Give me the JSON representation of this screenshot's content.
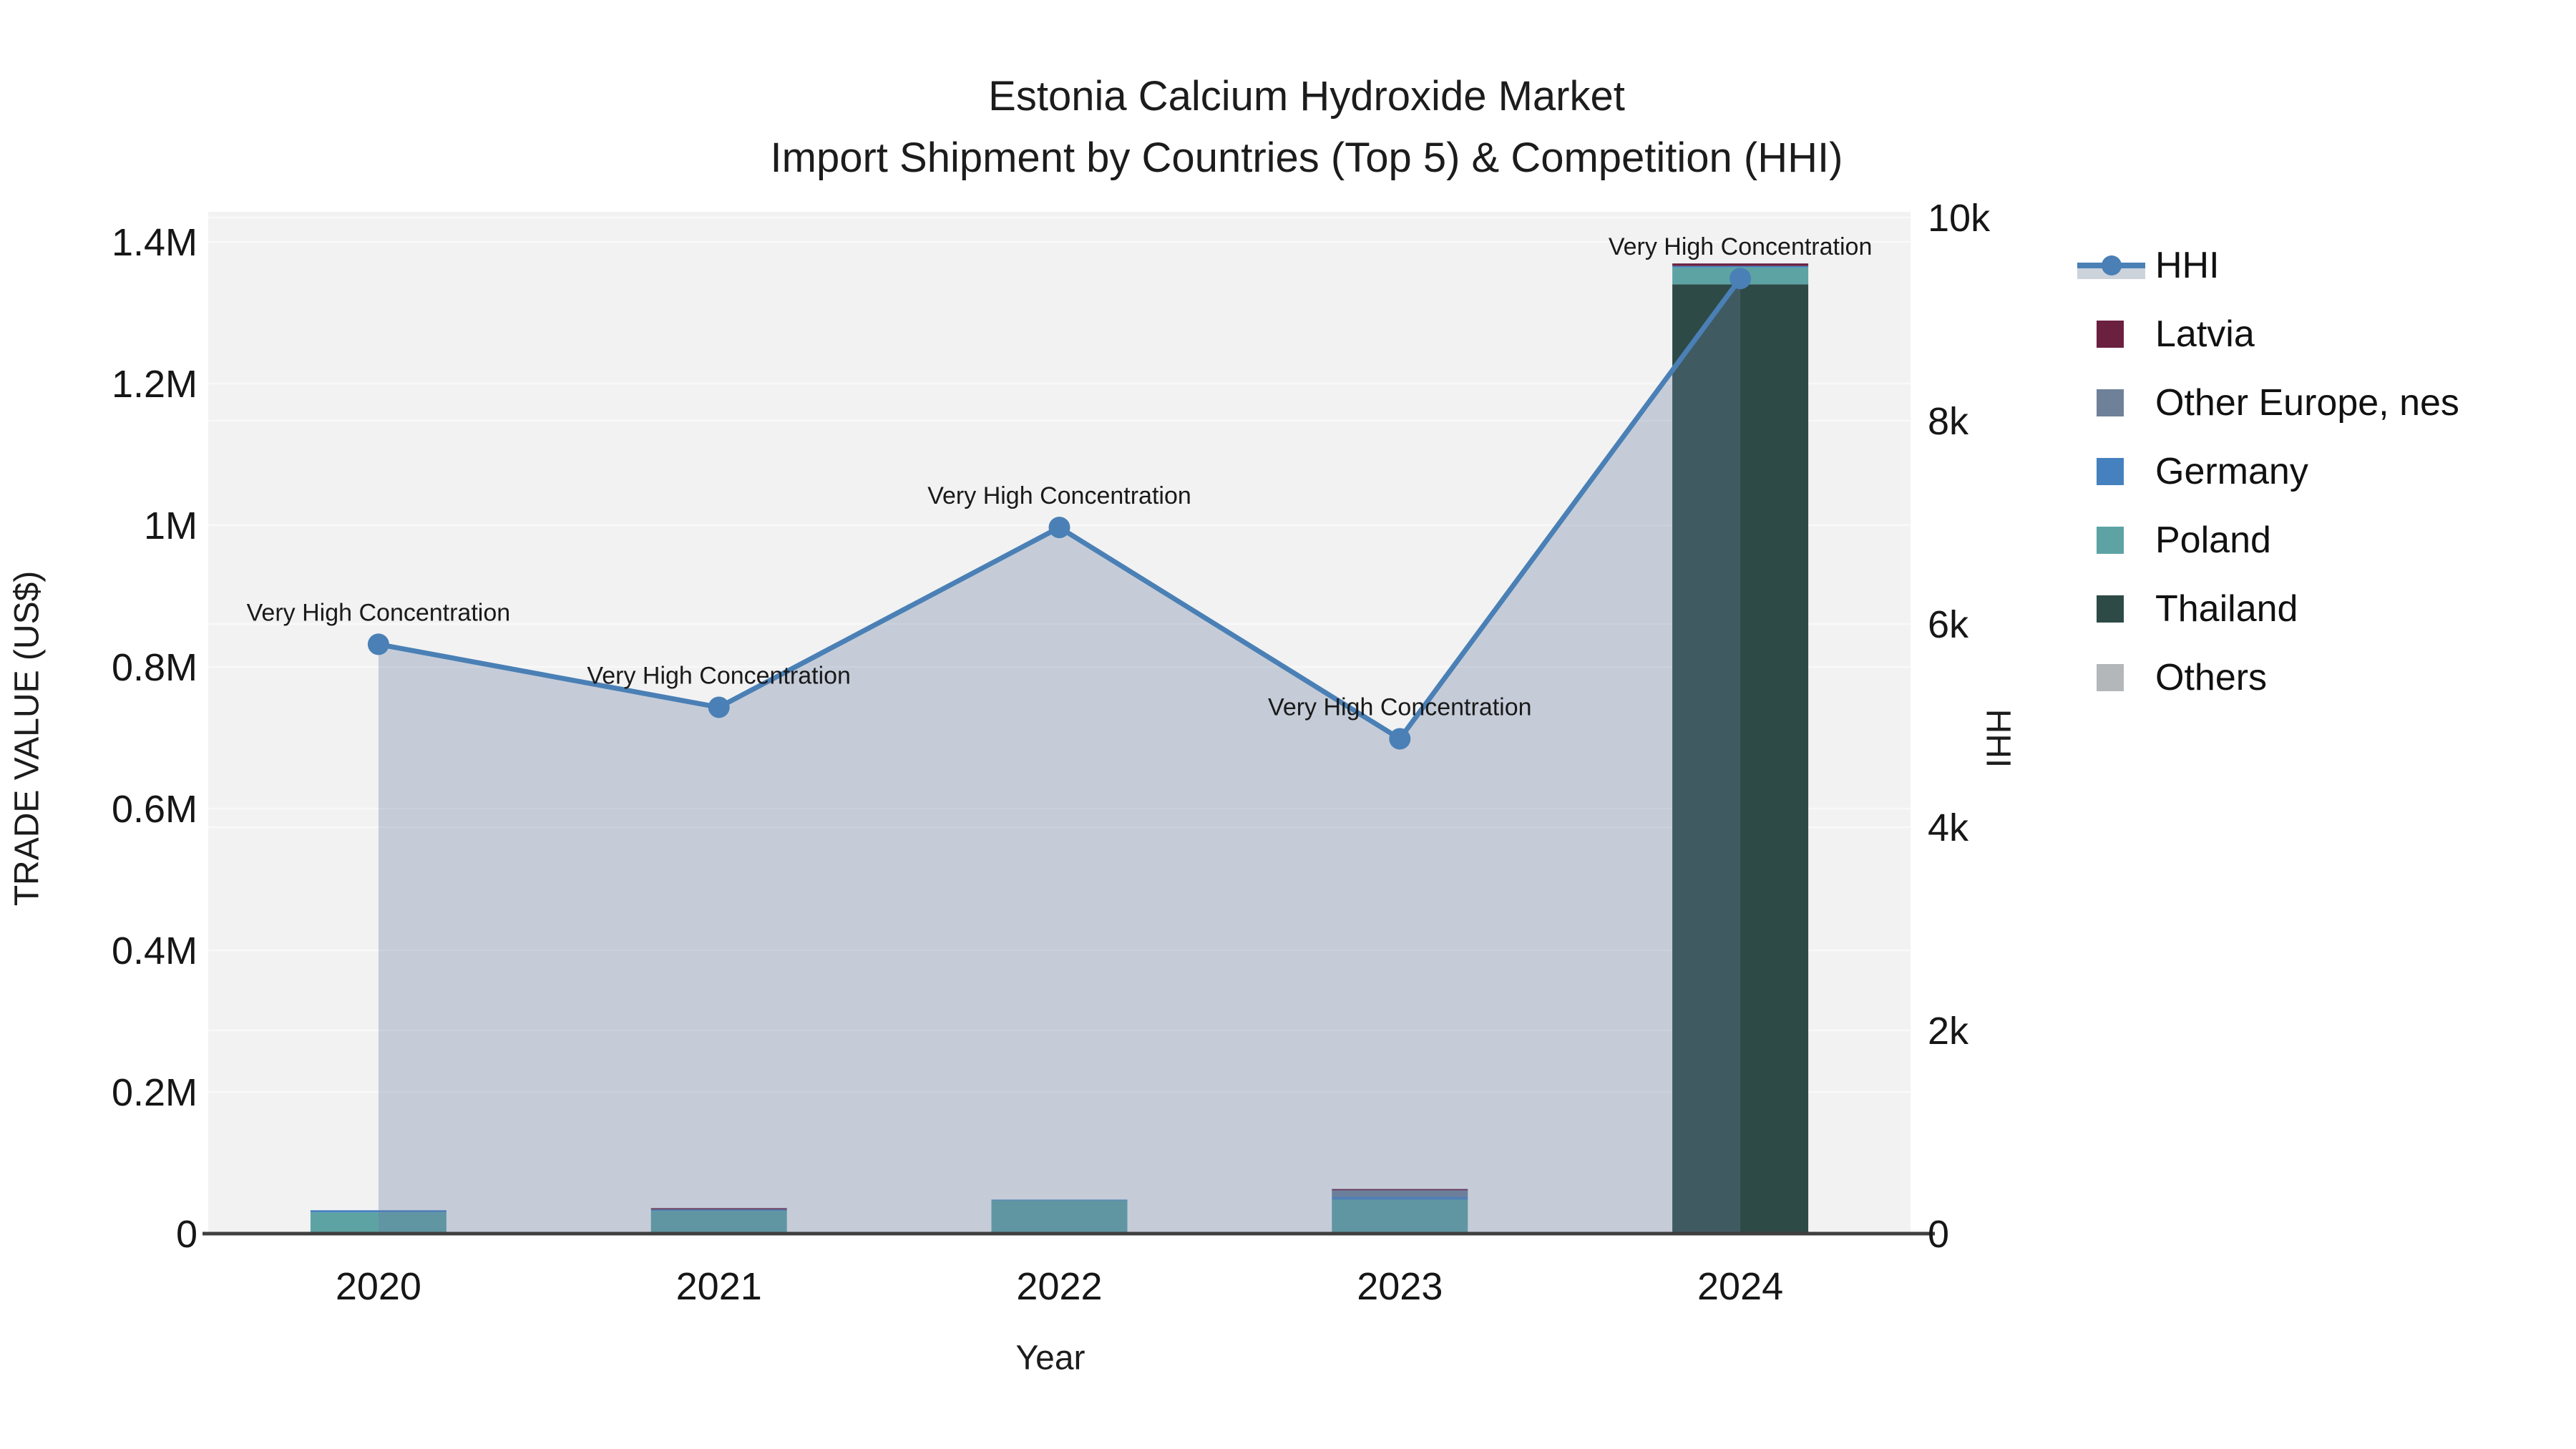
{
  "title": {
    "line1": "Estonia Calcium Hydroxide Market",
    "line2": "Import Shipment by Countries (Top 5) & Competition (HHI)"
  },
  "axes": {
    "x_title": "Year",
    "y_left_title": "TRADE VALUE (US$)",
    "y_right_title": "HHI",
    "y_left_ticks": [
      {
        "value": 0,
        "label": "0"
      },
      {
        "value": 200000,
        "label": "0.2M"
      },
      {
        "value": 400000,
        "label": "0.4M"
      },
      {
        "value": 600000,
        "label": "0.6M"
      },
      {
        "value": 800000,
        "label": "0.8M"
      },
      {
        "value": 1000000,
        "label": "1M"
      },
      {
        "value": 1200000,
        "label": "1.2M"
      },
      {
        "value": 1400000,
        "label": "1.4M"
      }
    ],
    "y_right_ticks": [
      {
        "value": 0,
        "label": "0"
      },
      {
        "value": 2000,
        "label": "2k"
      },
      {
        "value": 4000,
        "label": "4k"
      },
      {
        "value": 6000,
        "label": "6k"
      },
      {
        "value": 8000,
        "label": "8k"
      },
      {
        "value": 10000,
        "label": "10k"
      }
    ]
  },
  "colors": {
    "plot_bg": "#f2f2f3",
    "grid": "rgba(255,255,255,0.55)",
    "axis_line": "#3f3f3f",
    "text": "#161616",
    "annotation_text": "#1a1a1a",
    "hhi_line": "#4a80b5",
    "hhi_area": "rgba(104,124,160,0.32)"
  },
  "chart_data": {
    "type": "bar+line",
    "title": "Estonia Calcium Hydroxide Market — Import Shipment by Countries (Top 5) & Competition (HHI)",
    "categories": [
      "2020",
      "2021",
      "2022",
      "2023",
      "2024"
    ],
    "ylim_left": [
      0,
      1440000
    ],
    "ylim_right": [
      0,
      10000
    ],
    "grid": "on",
    "legend_position": "right",
    "bar_series": [
      {
        "name": "Latvia",
        "color": "#6b2040",
        "values": [
          0,
          2000,
          0,
          2000,
          3500
        ]
      },
      {
        "name": "Other Europe, nes",
        "color": "#6f8199",
        "values": [
          0,
          0,
          0,
          9000,
          0
        ]
      },
      {
        "name": "Germany",
        "color": "#4581bf",
        "values": [
          3000,
          2000,
          1000,
          4000,
          2000
        ]
      },
      {
        "name": "Poland",
        "color": "#5ea3a4",
        "values": [
          30000,
          32000,
          47000,
          48000,
          24000
        ]
      },
      {
        "name": "Thailand",
        "color": "#2e4a46",
        "values": [
          0,
          0,
          0,
          0,
          1340000
        ]
      },
      {
        "name": "Others",
        "color": "#b3b7ba",
        "values": [
          0,
          0,
          0,
          0,
          0
        ]
      }
    ],
    "line_series": {
      "name": "HHI",
      "axis": "right",
      "values": [
        5800,
        5180,
        6950,
        4870,
        9400
      ]
    },
    "annotations": [
      {
        "category": "2020",
        "text": "Very High Concentration"
      },
      {
        "category": "2021",
        "text": "Very High Concentration"
      },
      {
        "category": "2022",
        "text": "Very High Concentration"
      },
      {
        "category": "2023",
        "text": "Very High Concentration"
      },
      {
        "category": "2024",
        "text": "Very High Concentration"
      }
    ],
    "legend_items": [
      "HHI",
      "Latvia",
      "Other Europe, nes",
      "Germany",
      "Poland",
      "Thailand",
      "Others"
    ]
  }
}
